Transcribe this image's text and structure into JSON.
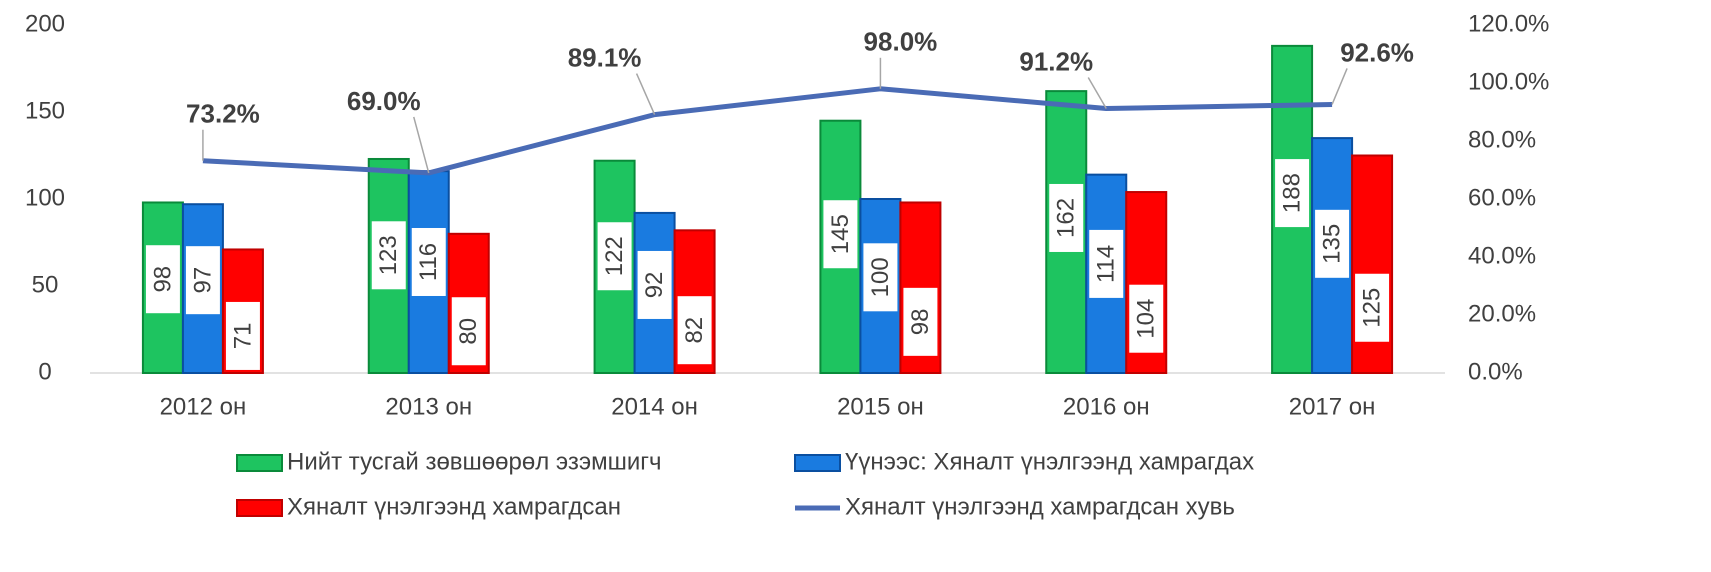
{
  "chart_data": {
    "type": "bar",
    "categories": [
      "2012 он",
      "2013 он",
      "2014 он",
      "2015 он",
      "2016 он",
      "2017 он"
    ],
    "series": [
      {
        "name": "Нийт тусгай зөвшөөрөл эзэмшигч",
        "color": "#1ec460",
        "values": [
          98,
          123,
          122,
          145,
          162,
          188
        ]
      },
      {
        "name": "Үүнээс: Хяналт үнэлгээнд хамрагдах",
        "color": "#1a7be0",
        "values": [
          97,
          116,
          92,
          100,
          114,
          135
        ]
      },
      {
        "name": "Хяналт үнэлгээнд хамрагдсан",
        "color": "#ff0000",
        "values": [
          71,
          80,
          82,
          98,
          104,
          125
        ]
      },
      {
        "name": "Хяналт үнэлгээнд хамрагдсан хувь",
        "color": "#4a6bb5",
        "type": "line",
        "axis": "y2",
        "values": [
          73.2,
          69.0,
          89.1,
          98.0,
          91.2,
          92.6
        ],
        "value_labels": [
          "73.2%",
          "69.0%",
          "89.1%",
          "98.0%",
          "91.2%",
          "92.6%"
        ]
      }
    ],
    "ylim": [
      0,
      200
    ],
    "yticks": [
      0,
      50,
      100,
      150,
      200
    ],
    "y2lim": [
      0,
      120
    ],
    "y2ticks": [
      {
        "value": 0,
        "label": "0.0%"
      },
      {
        "value": 20,
        "label": "20.0%"
      },
      {
        "value": 40,
        "label": "40.0%"
      },
      {
        "value": 60,
        "label": "60.0%"
      },
      {
        "value": 80,
        "label": "80.0%"
      },
      {
        "value": 100,
        "label": "100.0%"
      },
      {
        "value": 120,
        "label": "120.0%"
      }
    ],
    "grid": false,
    "legend": "bottom"
  }
}
